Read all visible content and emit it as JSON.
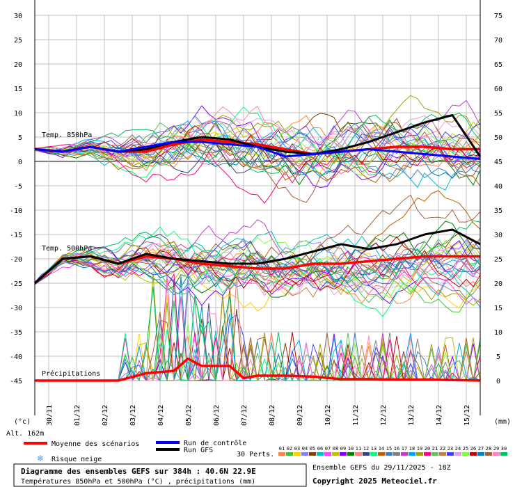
{
  "chart_data": {
    "type": "line",
    "x_dates": [
      "30/11",
      "01/12",
      "02/12",
      "03/12",
      "04/12",
      "05/12",
      "06/12",
      "07/12",
      "08/12",
      "09/12",
      "10/12",
      "11/12",
      "12/12",
      "13/12",
      "14/12",
      "15/12"
    ],
    "y_left": {
      "unit": "(°c)",
      "range": [
        -45,
        30
      ],
      "ticks": [
        30,
        25,
        20,
        15,
        10,
        5,
        0,
        -5,
        -10,
        -15,
        -20,
        -25,
        -30,
        -35,
        -40,
        -45
      ]
    },
    "y_right": {
      "unit": "(mm)",
      "range": [
        0,
        75
      ],
      "ticks": [
        75,
        70,
        65,
        60,
        55,
        50,
        45,
        40,
        35,
        30,
        25,
        20,
        15,
        10,
        5,
        0
      ]
    },
    "panel_labels": {
      "t850": "Temp. 850hPa",
      "t500": "Temp. 500hPa",
      "precip": "Précipitations"
    },
    "altitude_label": "Alt. 162m",
    "series": [
      {
        "name": "Moyenne des scénarios",
        "color": "#ff0000",
        "panel": "t850",
        "x": [
          0,
          1,
          2,
          3,
          4,
          5,
          6,
          7,
          8,
          9,
          10,
          11,
          12,
          13,
          14,
          15,
          16
        ],
        "values": [
          2.5,
          2,
          3,
          2,
          2,
          3.5,
          4.5,
          4,
          3.5,
          2.5,
          1.5,
          2,
          2.5,
          3,
          3,
          2.5,
          2.5
        ]
      },
      {
        "name": "Run GFS",
        "color": "#000000",
        "panel": "t850",
        "x": [
          0,
          1,
          2,
          3,
          4,
          5,
          6,
          7,
          8,
          9,
          10,
          11,
          12,
          13,
          14,
          15,
          16
        ],
        "values": [
          2.5,
          2,
          3,
          2,
          2.5,
          4,
          5,
          4.5,
          3,
          2,
          1.5,
          2.5,
          4,
          6,
          8,
          9.5,
          1
        ]
      },
      {
        "name": "Run de contrôle",
        "color": "#0000ff",
        "panel": "t850",
        "x": [
          0,
          1,
          2,
          3,
          4,
          5,
          6,
          7,
          8,
          9,
          10,
          11,
          12,
          13,
          14,
          15,
          16
        ],
        "values": [
          2.5,
          2,
          3,
          2,
          3,
          4,
          4,
          3.5,
          3,
          1,
          1.5,
          2,
          2.5,
          2,
          1.5,
          1,
          0.5
        ]
      },
      {
        "name": "Moyenne des scénarios",
        "color": "#ff0000",
        "panel": "t500",
        "x": [
          0,
          1,
          2,
          3,
          4,
          5,
          6,
          7,
          8,
          9,
          10,
          11,
          12,
          13,
          14,
          15,
          16
        ],
        "values": [
          -25,
          -20,
          -19.5,
          -21,
          -19.5,
          -20,
          -21,
          -21.5,
          -22,
          -22,
          -21,
          -21,
          -20.5,
          -20,
          -19.5,
          -19.5,
          -19.5
        ]
      },
      {
        "name": "Run GFS",
        "color": "#000000",
        "panel": "t500",
        "x": [
          0,
          1,
          2,
          3,
          4,
          5,
          6,
          7,
          8,
          9,
          10,
          11,
          12,
          13,
          14,
          15,
          16
        ],
        "values": [
          -25,
          -20,
          -19.5,
          -21,
          -19,
          -20,
          -20.5,
          -21,
          -21,
          -20,
          -18.5,
          -17,
          -18,
          -17,
          -15,
          -14,
          -17
        ]
      },
      {
        "name": "Moyenne des scénarios",
        "color": "#ff0000",
        "panel": "precip",
        "x": [
          0,
          1,
          2,
          3,
          4,
          5,
          5.5,
          6,
          7,
          7.5,
          8,
          9,
          10,
          11,
          12,
          13,
          14,
          15,
          16
        ],
        "values": [
          0,
          0,
          0,
          0,
          1.5,
          2,
          4.5,
          3,
          3,
          0.5,
          1,
          1,
          0.8,
          0.3,
          0.3,
          0.2,
          0.2,
          0.1,
          0
        ]
      }
    ],
    "legend": {
      "mean": "Moyenne des scénarios",
      "control": "Run de contrôle",
      "gfs": "Run GFS",
      "snow": "Risque neige",
      "perts_label": "30 Perts.",
      "perts_numbers": [
        "01",
        "02",
        "03",
        "04",
        "05",
        "06",
        "07",
        "08",
        "09",
        "10",
        "11",
        "12",
        "13",
        "14",
        "15",
        "16",
        "17",
        "18",
        "19",
        "20",
        "21",
        "22",
        "23",
        "24",
        "25",
        "26",
        "27",
        "28",
        "29",
        "30"
      ],
      "perts_colors": [
        "#ff8040",
        "#40c040",
        "#ffd000",
        "#8080ff",
        "#804000",
        "#00c0c0",
        "#ff40ff",
        "#c0c000",
        "#8000ff",
        "#008000",
        "#ff8080",
        "#404080",
        "#00ff80",
        "#c06000",
        "#4080c0",
        "#808080",
        "#c040c0",
        "#00a0ff",
        "#a0a000",
        "#ff0080",
        "#60c060",
        "#c08040",
        "#4040ff",
        "#e0a0e0",
        "#80ff40",
        "#c00000",
        "#0080c0",
        "#a06040",
        "#ff80c0",
        "#00c060"
      ]
    },
    "footer": {
      "title": "Diagramme des ensembles GEFS sur 384h : 40.6N 22.9E",
      "subtitle": "Températures 850hPa et 500hPa (°C) , précipitations (mm)",
      "run": "Ensemble GEFS du 29/11/2025 - 18Z",
      "copyright": "Copyright 2025 Meteociel.fr"
    },
    "grid": true
  },
  "colors": {
    "mean": "#ff0000",
    "control": "#0000ff",
    "gfs": "#000000",
    "grid": "#c0c0c0",
    "snow": "#40a0ff"
  }
}
